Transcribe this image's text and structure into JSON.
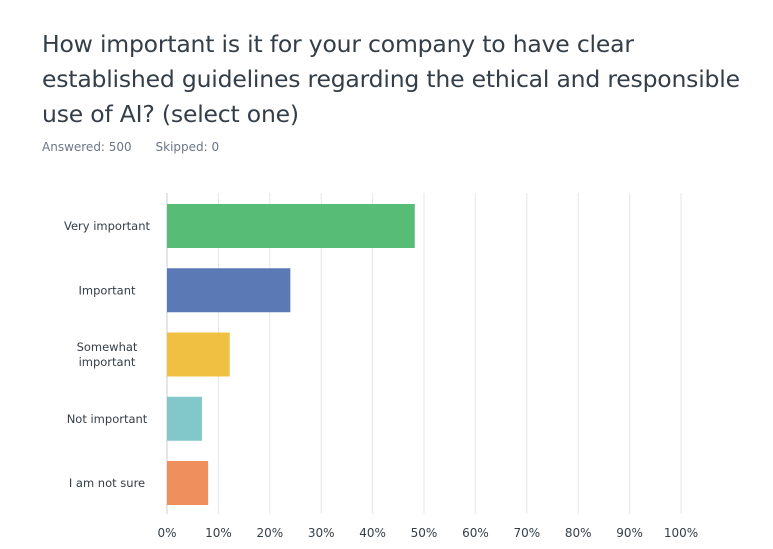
{
  "question": {
    "title": "How important is it for your company to have clear established guidelines regarding the ethical and responsible use of AI?  (select one)",
    "answered": "Answered: 500",
    "skipped": "Skipped: 0"
  },
  "chart_data": {
    "type": "bar",
    "orientation": "horizontal",
    "categories": [
      [
        "Very important"
      ],
      [
        "Important"
      ],
      [
        "Somewhat",
        "important"
      ],
      [
        "Not important"
      ],
      [
        "I am not sure"
      ]
    ],
    "values": [
      48.2,
      24.0,
      12.2,
      6.8,
      8.0
    ],
    "colors": [
      "#57bc76",
      "#5b7ab5",
      "#f0c043",
      "#82c8cb",
      "#ef8f5e"
    ],
    "xlim": [
      0,
      100
    ],
    "xticks": [
      "0%",
      "10%",
      "20%",
      "30%",
      "40%",
      "50%",
      "60%",
      "70%",
      "80%",
      "90%",
      "100%"
    ],
    "grid": true,
    "title": "",
    "xlabel": "",
    "ylabel": ""
  }
}
